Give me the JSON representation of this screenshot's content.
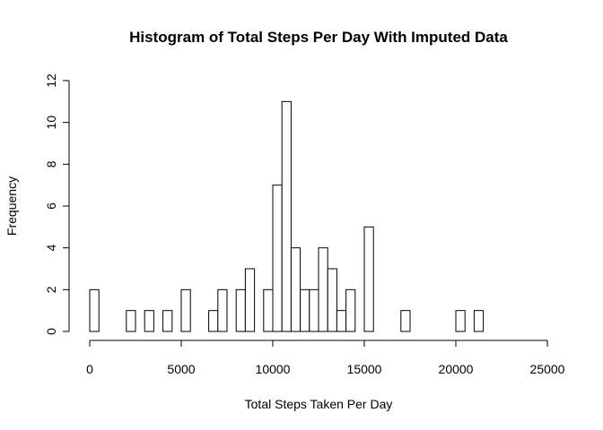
{
  "chart_data": {
    "type": "bar",
    "title": "Histogram of Total Steps Per Day With Imputed Data",
    "xlabel": "Total Steps Taken Per Day",
    "ylabel": "Frequency",
    "xlim": [
      0,
      25000
    ],
    "ylim": [
      0,
      12
    ],
    "x_ticks": [
      0,
      5000,
      10000,
      15000,
      20000,
      25000
    ],
    "y_ticks": [
      0,
      2,
      4,
      6,
      8,
      10,
      12
    ],
    "bin_width": 500,
    "bin_start": 0,
    "values": [
      2,
      0,
      0,
      0,
      1,
      0,
      1,
      0,
      1,
      0,
      2,
      0,
      0,
      1,
      2,
      0,
      2,
      3,
      0,
      2,
      7,
      11,
      4,
      2,
      2,
      4,
      3,
      1,
      2,
      0,
      5,
      0,
      0,
      0,
      1,
      0,
      0,
      0,
      0,
      0,
      1,
      0,
      1
    ],
    "grid": false,
    "legend": "none",
    "bar_fill": "#ffffff",
    "bar_stroke": "#000000"
  }
}
